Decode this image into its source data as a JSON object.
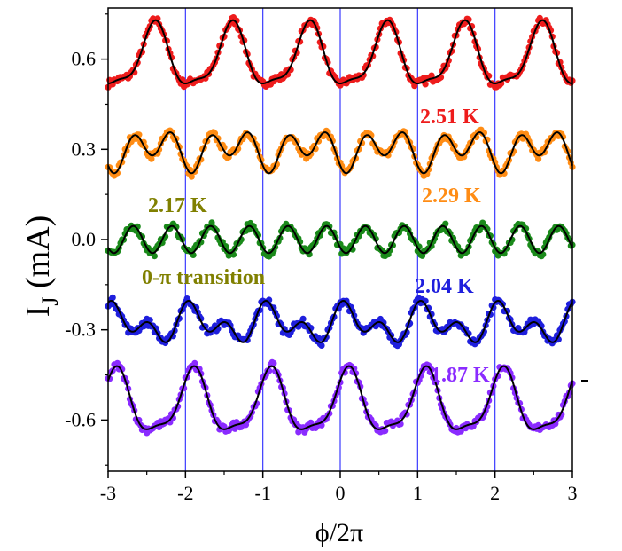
{
  "chart_data": {
    "type": "scatter",
    "xlabel": "ϕ/2π",
    "ylabel": {
      "main": "I",
      "sub": "J",
      "unit": " (mA)"
    },
    "xlim": [
      -3,
      3
    ],
    "ylim": [
      -0.77,
      0.77
    ],
    "xticks": [
      -3,
      -2,
      -1,
      0,
      1,
      2,
      3
    ],
    "xtick_labels": [
      "-3",
      "-2",
      "-1",
      "0",
      "1",
      "2",
      "3"
    ],
    "yticks": [
      -0.6,
      -0.3,
      0.0,
      0.3,
      0.6
    ],
    "ytick_labels": [
      "-0.6",
      "-0.3",
      "0.0",
      "0.3",
      "0.6"
    ],
    "vertical_lines": {
      "x": [
        -2,
        -1,
        0,
        1,
        2
      ],
      "color": "#3b3bff"
    },
    "fit_color": "#000000",
    "series": [
      {
        "name": "2.51 K",
        "color": "#ee1c1c",
        "offset": 0.6,
        "amp1": 0.1,
        "phase1": -0.35,
        "amp2": 0.03,
        "phase2": 0.0
      },
      {
        "name": "2.29 K",
        "color": "#ff8c14",
        "offset": 0.3,
        "amp1": 0.03,
        "phase1": -0.35,
        "amp2": 0.05,
        "phase2": 0.3
      },
      {
        "name": "2.17 K",
        "color": "#1a8a1a",
        "offset": 0.0,
        "amp1": 0.0,
        "phase1": 0.0,
        "amp2": 0.045,
        "phase2": 0.3
      },
      {
        "name": "2.04 K",
        "color": "#1f1fdd",
        "offset": -0.28,
        "amp1": 0.04,
        "phase1": 0.15,
        "amp2": 0.04,
        "phase2": 0.1
      },
      {
        "name": "1.87 K",
        "color": "#8a2bff",
        "offset": -0.55,
        "amp1": 0.1,
        "phase1": 0.15,
        "amp2": 0.03,
        "phase2": 0.0
      }
    ],
    "annotations": [
      {
        "text": "2.51 K",
        "color": "#ee1c1c"
      },
      {
        "text": "2.29 K",
        "color": "#ff8c14"
      },
      {
        "text": "2.17 K",
        "color": "#808000"
      },
      {
        "text": "0-π transition",
        "color": "#808000"
      },
      {
        "text": "2.04 K",
        "color": "#1f1fdd"
      },
      {
        "text": "1.87 K",
        "color": "#8a2bff"
      }
    ]
  }
}
